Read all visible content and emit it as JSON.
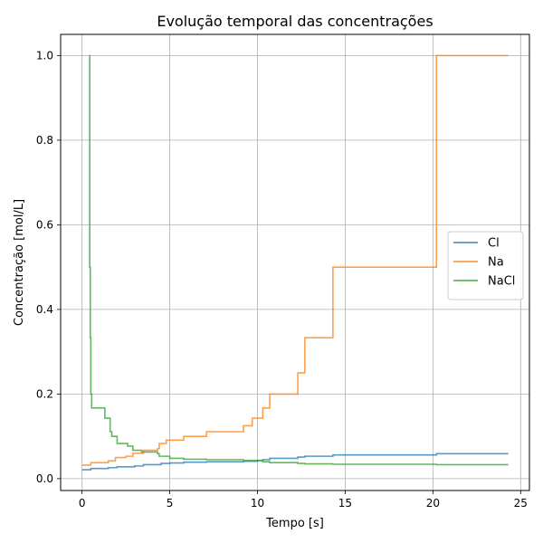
{
  "chart_data": {
    "type": "line",
    "step": true,
    "title": "Evolução temporal das concentrações",
    "xlabel": "Tempo [s]",
    "ylabel": "Concentração [mol/L]",
    "xlim": [
      -1.22,
      25.5
    ],
    "ylim": [
      -0.028,
      1.05
    ],
    "xticks": [
      0,
      5,
      10,
      15,
      20,
      25
    ],
    "xtick_labels": [
      "0",
      "5",
      "10",
      "15",
      "20",
      "25"
    ],
    "yticks": [
      0.0,
      0.2,
      0.4,
      0.6,
      0.8,
      1.0
    ],
    "ytick_labels": [
      "0.0",
      "0.2",
      "0.4",
      "0.6",
      "0.8",
      "1.0"
    ],
    "grid": true,
    "legend_position": "center-right",
    "series": [
      {
        "name": "Cl",
        "color": "#1f77b4",
        "points": [
          [
            0.0,
            0.021
          ],
          [
            0.5,
            0.024
          ],
          [
            1.5,
            0.026
          ],
          [
            2.0,
            0.028
          ],
          [
            3.0,
            0.03
          ],
          [
            3.5,
            0.033
          ],
          [
            4.5,
            0.036
          ],
          [
            5.0,
            0.037
          ],
          [
            5.8,
            0.039
          ],
          [
            7.1,
            0.04
          ],
          [
            9.2,
            0.041
          ],
          [
            10.0,
            0.043
          ],
          [
            10.3,
            0.045
          ],
          [
            10.7,
            0.048
          ],
          [
            12.3,
            0.051
          ],
          [
            12.7,
            0.053
          ],
          [
            14.3,
            0.056
          ],
          [
            20.2,
            0.059
          ],
          [
            24.3,
            0.059
          ]
        ]
      },
      {
        "name": "Na",
        "color": "#ff7f0e",
        "points": [
          [
            0.0,
            0.032
          ],
          [
            0.5,
            0.038
          ],
          [
            1.5,
            0.042
          ],
          [
            1.9,
            0.05
          ],
          [
            2.5,
            0.053
          ],
          [
            2.9,
            0.06
          ],
          [
            3.5,
            0.067
          ],
          [
            4.3,
            0.071
          ],
          [
            4.4,
            0.083
          ],
          [
            4.8,
            0.091
          ],
          [
            5.8,
            0.1
          ],
          [
            7.1,
            0.111
          ],
          [
            9.2,
            0.125
          ],
          [
            9.7,
            0.143
          ],
          [
            10.3,
            0.167
          ],
          [
            10.7,
            0.2
          ],
          [
            12.3,
            0.25
          ],
          [
            12.7,
            0.333
          ],
          [
            14.3,
            0.5
          ],
          [
            20.2,
            1.0
          ],
          [
            24.3,
            1.0
          ]
        ]
      },
      {
        "name": "NaCl",
        "color": "#2ca02c",
        "points": [
          [
            0.4,
            1.0
          ],
          [
            0.44,
            0.5
          ],
          [
            0.47,
            0.333
          ],
          [
            0.5,
            0.2
          ],
          [
            0.55,
            0.167
          ],
          [
            1.3,
            0.143
          ],
          [
            1.6,
            0.111
          ],
          [
            1.7,
            0.1
          ],
          [
            2.0,
            0.083
          ],
          [
            2.6,
            0.077
          ],
          [
            2.9,
            0.067
          ],
          [
            3.4,
            0.063
          ],
          [
            4.3,
            0.059
          ],
          [
            4.4,
            0.053
          ],
          [
            5.0,
            0.048
          ],
          [
            5.8,
            0.046
          ],
          [
            7.1,
            0.045
          ],
          [
            9.2,
            0.043
          ],
          [
            10.3,
            0.04
          ],
          [
            10.7,
            0.038
          ],
          [
            12.3,
            0.036
          ],
          [
            12.7,
            0.035
          ],
          [
            14.3,
            0.034
          ],
          [
            20.2,
            0.033
          ],
          [
            24.3,
            0.033
          ]
        ]
      }
    ]
  }
}
